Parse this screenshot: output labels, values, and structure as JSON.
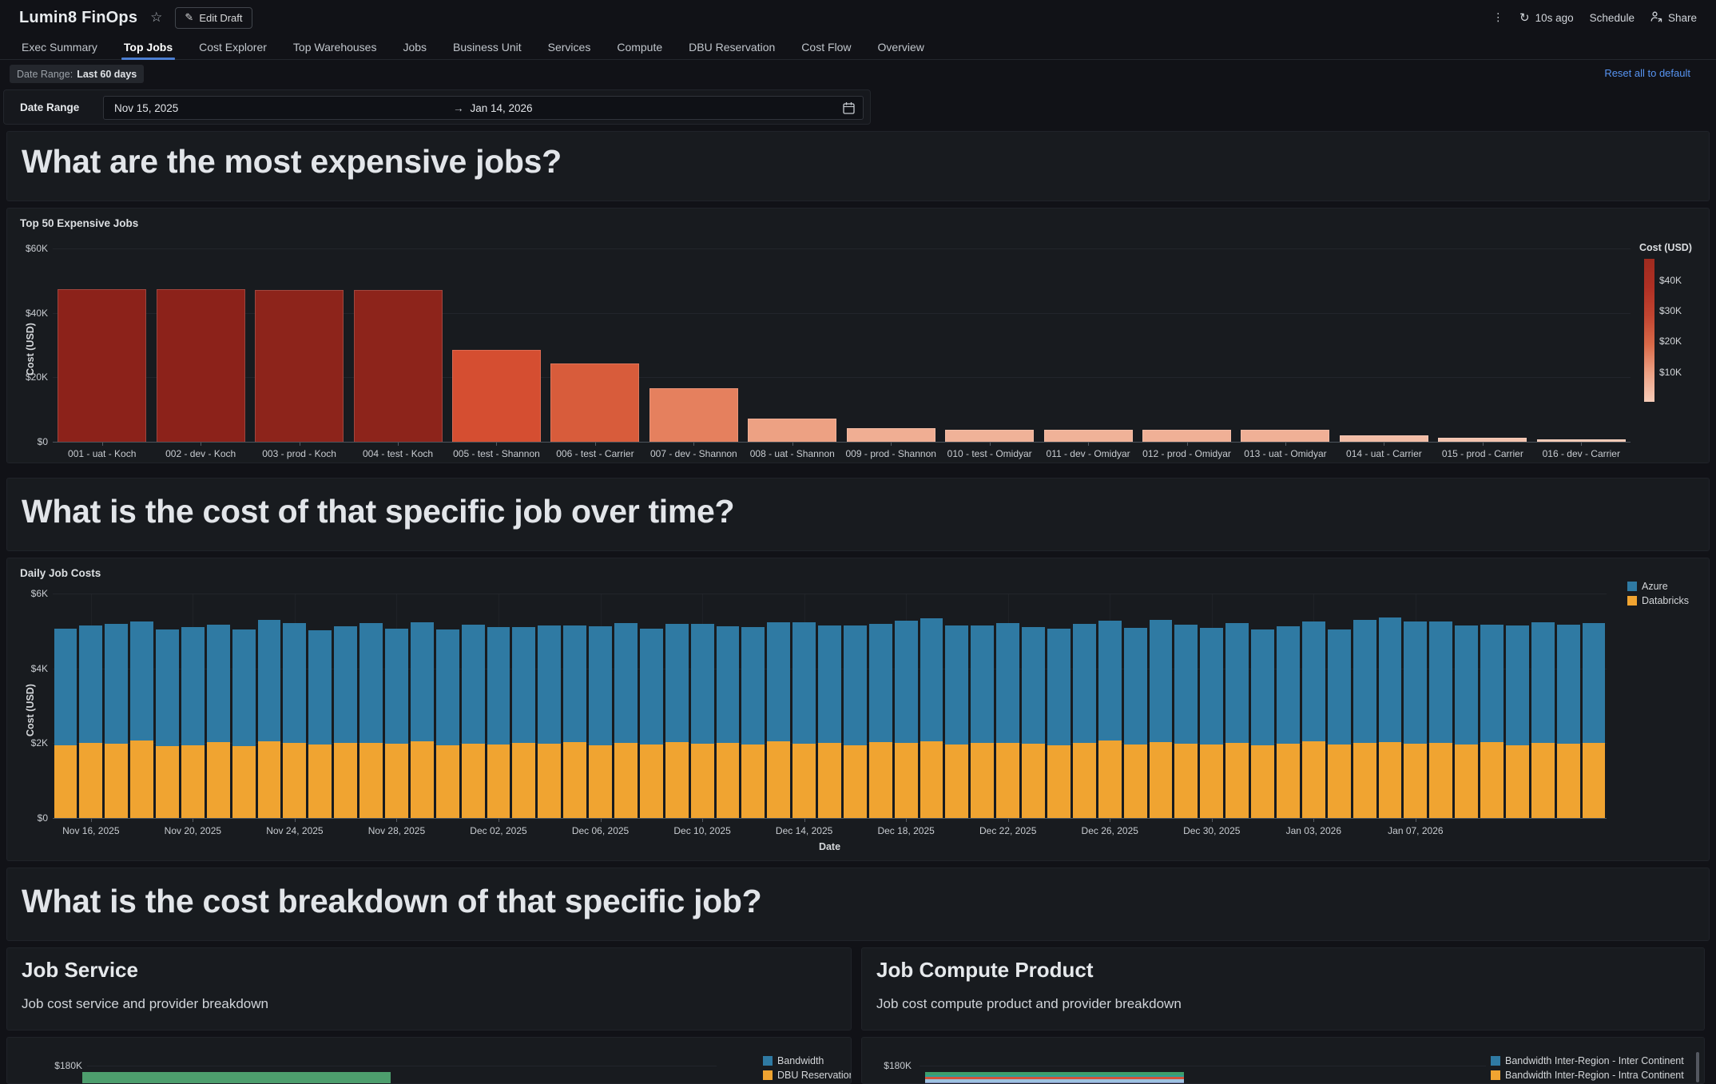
{
  "header": {
    "title": "Lumin8 FinOps",
    "edit_draft_label": "Edit Draft",
    "refresh_label": "10s ago",
    "schedule_label": "Schedule",
    "share_label": "Share"
  },
  "tabs": [
    {
      "label": "Exec Summary",
      "active": false
    },
    {
      "label": "Top Jobs",
      "active": true
    },
    {
      "label": "Cost Explorer",
      "active": false
    },
    {
      "label": "Top Warehouses",
      "active": false
    },
    {
      "label": "Jobs",
      "active": false
    },
    {
      "label": "Business Unit",
      "active": false
    },
    {
      "label": "Services",
      "active": false
    },
    {
      "label": "Compute",
      "active": false
    },
    {
      "label": "DBU Reservation",
      "active": false
    },
    {
      "label": "Cost Flow",
      "active": false
    },
    {
      "label": "Overview",
      "active": false
    }
  ],
  "filters": {
    "chip_label": "Date Range:",
    "chip_value": "Last 60 days",
    "reset_label": "Reset all to default",
    "date_range_label": "Date Range",
    "date_from": "Nov 15, 2025",
    "arrow": "→",
    "date_to": "Jan 14, 2026"
  },
  "sections": {
    "q1": "What are the most expensive jobs?",
    "q2": "What is the cost of that specific job over time?",
    "q3": "What is the cost breakdown of that specific job?"
  },
  "chart_data": [
    {
      "id": "top_jobs",
      "type": "bar",
      "title": "Top 50 Expensive Jobs",
      "ylabel": "Cost (USD)",
      "ylim": [
        0,
        60000
      ],
      "yticks": [
        "$0",
        "$20K",
        "$40K",
        "$60K"
      ],
      "categories": [
        "001 - uat - Koch",
        "002 - dev - Koch",
        "003 - prod - Koch",
        "004 - test - Koch",
        "005 - test - Shannon",
        "006 - test - Carrier",
        "007 - dev - Shannon",
        "008 - uat - Shannon",
        "009 - prod - Shannon",
        "010 - test - Omidyar",
        "011 - dev - Omidyar",
        "012 - prod - Omidyar",
        "013 - uat - Omidyar",
        "014 - uat - Carrier",
        "015 - prod - Carrier",
        "016 - dev - Carrier"
      ],
      "values": [
        47400,
        47300,
        47100,
        47000,
        28400,
        24400,
        16500,
        7200,
        4300,
        3600,
        3600,
        3700,
        3700,
        2100,
        1300,
        700
      ],
      "bar_colors": [
        "#8c221a",
        "#8c221a",
        "#8d241b",
        "#8d241b",
        "#d54e31",
        "#d85c3b",
        "#e5805e",
        "#eda183",
        "#f0ae93",
        "#f0b298",
        "#f0b298",
        "#f0b096",
        "#f0b096",
        "#f2bda6",
        "#f3c3ae",
        "#f4c9b4"
      ],
      "colorbar": {
        "title": "Cost (USD)",
        "ticks": [
          "$40K",
          "$30K",
          "$20K",
          "$10K"
        ],
        "gradient": [
          "#9e2b1f",
          "#b03024",
          "#c14531",
          "#d96a49",
          "#eda285",
          "#f6ccb8"
        ]
      },
      "grid": true,
      "legend_position": "right-colorbar"
    },
    {
      "id": "daily_job_costs",
      "type": "bar",
      "stacked": true,
      "title": "Daily Job Costs",
      "xlabel": "Date",
      "ylabel": "Cost (USD)",
      "ylim": [
        0,
        6000
      ],
      "yticks": [
        "$0",
        "$2K",
        "$4K",
        "$6K"
      ],
      "legend_position": "top-right",
      "legend": [
        {
          "name": "Azure",
          "color": "#2f7aa3"
        },
        {
          "name": "Databricks",
          "color": "#f0a431"
        }
      ],
      "x": [
        "Nov 15, 2025",
        "Nov 16, 2025",
        "Nov 17, 2025",
        "Nov 18, 2025",
        "Nov 19, 2025",
        "Nov 20, 2025",
        "Nov 21, 2025",
        "Nov 22, 2025",
        "Nov 23, 2025",
        "Nov 24, 2025",
        "Nov 25, 2025",
        "Nov 26, 2025",
        "Nov 27, 2025",
        "Nov 28, 2025",
        "Nov 29, 2025",
        "Nov 30, 2025",
        "Dec 01, 2025",
        "Dec 02, 2025",
        "Dec 03, 2025",
        "Dec 04, 2025",
        "Dec 05, 2025",
        "Dec 06, 2025",
        "Dec 07, 2025",
        "Dec 08, 2025",
        "Dec 09, 2025",
        "Dec 10, 2025",
        "Dec 11, 2025",
        "Dec 12, 2025",
        "Dec 13, 2025",
        "Dec 14, 2025",
        "Dec 15, 2025",
        "Dec 16, 2025",
        "Dec 17, 2025",
        "Dec 18, 2025",
        "Dec 19, 2025",
        "Dec 20, 2025",
        "Dec 21, 2025",
        "Dec 22, 2025",
        "Dec 23, 2025",
        "Dec 24, 2025",
        "Dec 25, 2025",
        "Dec 26, 2025",
        "Dec 27, 2025",
        "Dec 28, 2025",
        "Dec 29, 2025",
        "Dec 30, 2025",
        "Dec 31, 2025",
        "Jan 01, 2026",
        "Jan 02, 2026",
        "Jan 03, 2026",
        "Jan 04, 2026",
        "Jan 05, 2026",
        "Jan 06, 2026",
        "Jan 07, 2026",
        "Jan 08, 2026",
        "Jan 09, 2026",
        "Jan 10, 2026",
        "Jan 11, 2026",
        "Jan 12, 2026",
        "Jan 13, 2026",
        "Jan 14, 2026"
      ],
      "xticks": [
        "Nov 16, 2025",
        "Nov 20, 2025",
        "Nov 24, 2025",
        "Nov 28, 2025",
        "Dec 02, 2025",
        "Dec 06, 2025",
        "Dec 10, 2025",
        "Dec 14, 2025",
        "Dec 18, 2025",
        "Dec 22, 2025",
        "Dec 26, 2025",
        "Dec 30, 2025",
        "Jan 03, 2026",
        "Jan 07, 2026"
      ],
      "series": [
        {
          "name": "Databricks",
          "color": "#f0a431",
          "values": [
            1950,
            2000,
            1980,
            2080,
            1920,
            1950,
            2020,
            1930,
            2050,
            2000,
            1970,
            2000,
            2010,
            1980,
            2050,
            1940,
            1990,
            1960,
            2000,
            1980,
            2020,
            1950,
            2000,
            1970,
            2030,
            1990,
            2000,
            1960,
            2050,
            1980,
            2000,
            1950,
            2020,
            2000,
            2040,
            1970,
            2000,
            2010,
            1980,
            1950,
            2000,
            2080,
            1970,
            2020,
            1990,
            1960,
            2000,
            1940,
            1980,
            2050,
            1960,
            2000,
            2030,
            1980,
            2000,
            1970,
            2020,
            1950,
            2000,
            1980,
            2000
          ]
        },
        {
          "name": "Azure",
          "color": "#2f7aa3",
          "values": [
            3100,
            3150,
            3200,
            3180,
            3120,
            3160,
            3150,
            3100,
            3250,
            3220,
            3050,
            3120,
            3200,
            3080,
            3180,
            3100,
            3180,
            3150,
            3100,
            3160,
            3120,
            3180,
            3220,
            3100,
            3150,
            3200,
            3120,
            3140,
            3180,
            3250,
            3150,
            3200,
            3160,
            3280,
            3300,
            3180,
            3150,
            3200,
            3120,
            3100,
            3180,
            3200,
            3120,
            3280,
            3180,
            3120,
            3200,
            3100,
            3150,
            3200,
            3080,
            3300,
            3340,
            3280,
            3250,
            3180,
            3150,
            3200,
            3240,
            3180,
            3200
          ]
        }
      ],
      "grid": true
    },
    {
      "id": "job_service",
      "type": "bar",
      "orientation": "horizontal",
      "title": "Job Service",
      "subtitle": "Job cost service and provider breakdown",
      "yticks": [
        "$180K"
      ],
      "legend_position": "right",
      "legend": [
        {
          "name": "Bandwidth",
          "color": "#2f7aa3"
        },
        {
          "name": "DBU Reservation",
          "color": "#f0a431"
        }
      ],
      "visible_bar_colors": [
        "#4d9e6d"
      ],
      "note_visible_region": "chart partially visible at bottom of screen"
    },
    {
      "id": "job_compute_product",
      "type": "bar",
      "orientation": "horizontal",
      "title": "Job Compute Product",
      "subtitle": "Job cost compute product and provider breakdown",
      "yticks": [
        "$180K"
      ],
      "legend_position": "right",
      "legend": [
        {
          "name": "Bandwidth Inter-Region - Inter Continent",
          "color": "#2f7aa3"
        },
        {
          "name": "Bandwidth Inter-Region - Intra Continent",
          "color": "#f0a431"
        }
      ],
      "visible_bar_colors": [
        "#3f9e6b",
        "#2aa198",
        "#d15439",
        "#9ec2e0",
        "#7c88ba",
        "#94403a"
      ],
      "note_visible_region": "chart partially visible at bottom of screen"
    }
  ]
}
